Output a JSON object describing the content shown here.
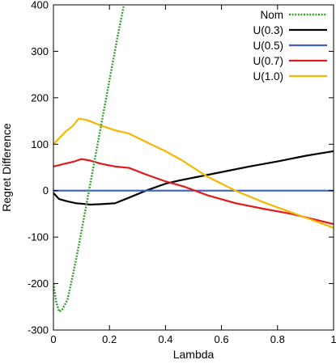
{
  "chart_data": {
    "type": "line",
    "xlabel": "Lambda",
    "ylabel": "Regret Difference",
    "xlim": [
      0,
      1
    ],
    "ylim": [
      -300,
      400
    ],
    "x_ticks": [
      "0",
      "0.2",
      "0.4",
      "0.6",
      "0.8",
      "1"
    ],
    "y_ticks": [
      "-300",
      "-200",
      "-100",
      "0",
      "100",
      "200",
      "300",
      "400"
    ],
    "legend_position": "top-right",
    "series": [
      {
        "name": "Nom",
        "color": "#33a02c",
        "style": "dotted",
        "x": [
          0,
          0.01,
          0.02,
          0.03,
          0.05,
          0.07,
          0.09,
          0.11,
          0.13,
          0.15,
          0.17,
          0.19,
          0.21,
          0.23,
          0.25,
          0.26,
          0.27
        ],
        "y": [
          -200,
          -240,
          -260,
          -258,
          -235,
          -180,
          -120,
          -55,
          10,
          75,
          140,
          205,
          270,
          335,
          395,
          420,
          450
        ]
      },
      {
        "name": "U(0.3)",
        "color": "#000000",
        "style": "solid",
        "x": [
          0,
          0.02,
          0.05,
          0.08,
          0.1,
          0.13,
          0.17,
          0.22,
          0.27,
          0.33,
          0.4,
          0.45,
          0.5,
          0.6,
          0.7,
          0.8,
          0.9,
          1.0
        ],
        "y": [
          -5,
          -18,
          -23,
          -27,
          -28,
          -30,
          -29,
          -27,
          -15,
          0,
          15,
          22,
          28,
          40,
          52,
          63,
          75,
          85
        ]
      },
      {
        "name": "U(0.5)",
        "color": "#3a5fcd",
        "style": "solid",
        "x": [
          0,
          1
        ],
        "y": [
          0,
          0
        ]
      },
      {
        "name": "U(0.7)",
        "color": "#e31a1c",
        "style": "solid",
        "x": [
          0,
          0.04,
          0.07,
          0.1,
          0.13,
          0.17,
          0.22,
          0.27,
          0.33,
          0.4,
          0.47,
          0.55,
          0.65,
          0.75,
          0.85,
          1.0
        ],
        "y": [
          52,
          58,
          62,
          68,
          65,
          58,
          52,
          49,
          35,
          20,
          8,
          -10,
          -27,
          -39,
          -50,
          -72
        ]
      },
      {
        "name": "U(1.0)",
        "color": "#f5b800",
        "style": "solid",
        "x": [
          0,
          0.04,
          0.07,
          0.09,
          0.12,
          0.17,
          0.22,
          0.27,
          0.33,
          0.4,
          0.46,
          0.55,
          0.65,
          0.75,
          0.85,
          1.0
        ],
        "y": [
          100,
          125,
          140,
          155,
          152,
          140,
          130,
          123,
          105,
          85,
          65,
          30,
          0,
          -25,
          -47,
          -80
        ]
      }
    ]
  }
}
